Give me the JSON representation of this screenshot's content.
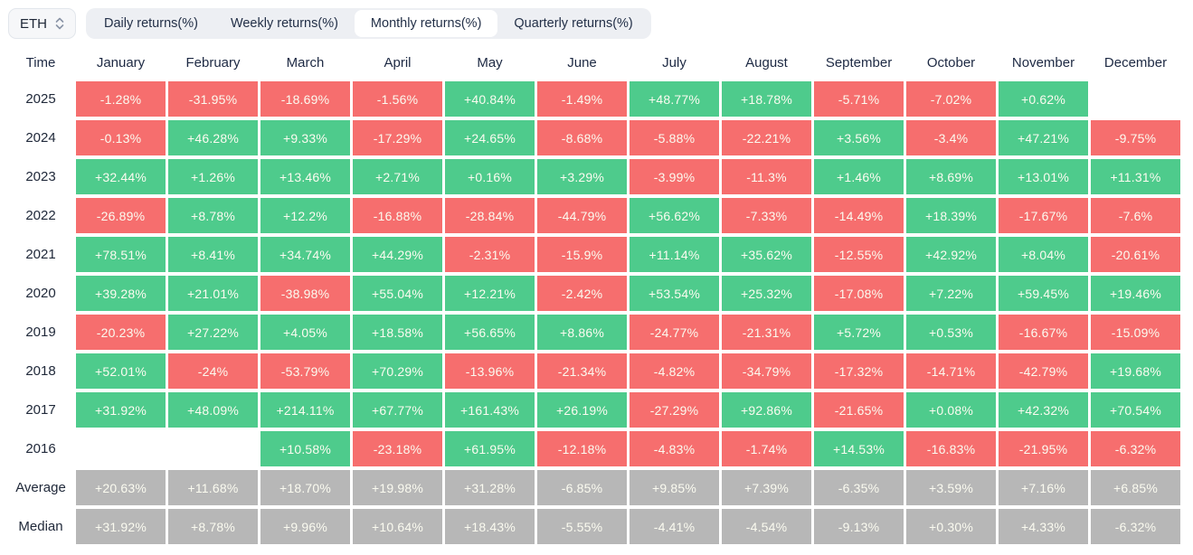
{
  "toolbar": {
    "symbol": "ETH",
    "tabs": [
      "Daily returns(%)",
      "Weekly returns(%)",
      "Monthly returns(%)",
      "Quarterly returns(%)"
    ],
    "active_tab": "Monthly returns(%)"
  },
  "colors": {
    "positive": "#4ecb8c",
    "negative": "#f66e6e",
    "summary": "#b7b7b7"
  },
  "chart_data": {
    "type": "heatmap",
    "title": "ETH Monthly returns (%)",
    "legend_position": "none",
    "columns": [
      "Time",
      "January",
      "February",
      "March",
      "April",
      "May",
      "June",
      "July",
      "August",
      "September",
      "October",
      "November",
      "December"
    ],
    "rows": [
      {
        "label": "2025",
        "kind": "year",
        "values": [
          "-1.28%",
          "-31.95%",
          "-18.69%",
          "-1.56%",
          "+40.84%",
          "-1.49%",
          "+48.77%",
          "+18.78%",
          "-5.71%",
          "-7.02%",
          "+0.62%",
          ""
        ]
      },
      {
        "label": "2024",
        "kind": "year",
        "values": [
          "-0.13%",
          "+46.28%",
          "+9.33%",
          "-17.29%",
          "+24.65%",
          "-8.68%",
          "-5.88%",
          "-22.21%",
          "+3.56%",
          "-3.4%",
          "+47.21%",
          "-9.75%"
        ]
      },
      {
        "label": "2023",
        "kind": "year",
        "values": [
          "+32.44%",
          "+1.26%",
          "+13.46%",
          "+2.71%",
          "+0.16%",
          "+3.29%",
          "-3.99%",
          "-11.3%",
          "+1.46%",
          "+8.69%",
          "+13.01%",
          "+11.31%"
        ]
      },
      {
        "label": "2022",
        "kind": "year",
        "values": [
          "-26.89%",
          "+8.78%",
          "+12.2%",
          "-16.88%",
          "-28.84%",
          "-44.79%",
          "+56.62%",
          "-7.33%",
          "-14.49%",
          "+18.39%",
          "-17.67%",
          "-7.6%"
        ]
      },
      {
        "label": "2021",
        "kind": "year",
        "values": [
          "+78.51%",
          "+8.41%",
          "+34.74%",
          "+44.29%",
          "-2.31%",
          "-15.9%",
          "+11.14%",
          "+35.62%",
          "-12.55%",
          "+42.92%",
          "+8.04%",
          "-20.61%"
        ]
      },
      {
        "label": "2020",
        "kind": "year",
        "values": [
          "+39.28%",
          "+21.01%",
          "-38.98%",
          "+55.04%",
          "+12.21%",
          "-2.42%",
          "+53.54%",
          "+25.32%",
          "-17.08%",
          "+7.22%",
          "+59.45%",
          "+19.46%"
        ]
      },
      {
        "label": "2019",
        "kind": "year",
        "values": [
          "-20.23%",
          "+27.22%",
          "+4.05%",
          "+18.58%",
          "+56.65%",
          "+8.86%",
          "-24.77%",
          "-21.31%",
          "+5.72%",
          "+0.53%",
          "-16.67%",
          "-15.09%"
        ]
      },
      {
        "label": "2018",
        "kind": "year",
        "values": [
          "+52.01%",
          "-24%",
          "-53.79%",
          "+70.29%",
          "-13.96%",
          "-21.34%",
          "-4.82%",
          "-34.79%",
          "-17.32%",
          "-14.71%",
          "-42.79%",
          "+19.68%"
        ]
      },
      {
        "label": "2017",
        "kind": "year",
        "values": [
          "+31.92%",
          "+48.09%",
          "+214.11%",
          "+67.77%",
          "+161.43%",
          "+26.19%",
          "-27.29%",
          "+92.86%",
          "-21.65%",
          "+0.08%",
          "+42.32%",
          "+70.54%"
        ]
      },
      {
        "label": "2016",
        "kind": "year",
        "values": [
          "",
          "",
          "+10.58%",
          "-23.18%",
          "+61.95%",
          "-12.18%",
          "-4.83%",
          "-1.74%",
          "+14.53%",
          "-16.83%",
          "-21.95%",
          "-6.32%"
        ]
      },
      {
        "label": "Average",
        "kind": "summary",
        "values": [
          "+20.63%",
          "+11.68%",
          "+18.70%",
          "+19.98%",
          "+31.28%",
          "-6.85%",
          "+9.85%",
          "+7.39%",
          "-6.35%",
          "+3.59%",
          "+7.16%",
          "+6.85%"
        ]
      },
      {
        "label": "Median",
        "kind": "summary",
        "values": [
          "+31.92%",
          "+8.78%",
          "+9.96%",
          "+10.64%",
          "+18.43%",
          "-5.55%",
          "-4.41%",
          "-4.54%",
          "-9.13%",
          "+0.30%",
          "+4.33%",
          "-6.32%"
        ]
      }
    ]
  }
}
